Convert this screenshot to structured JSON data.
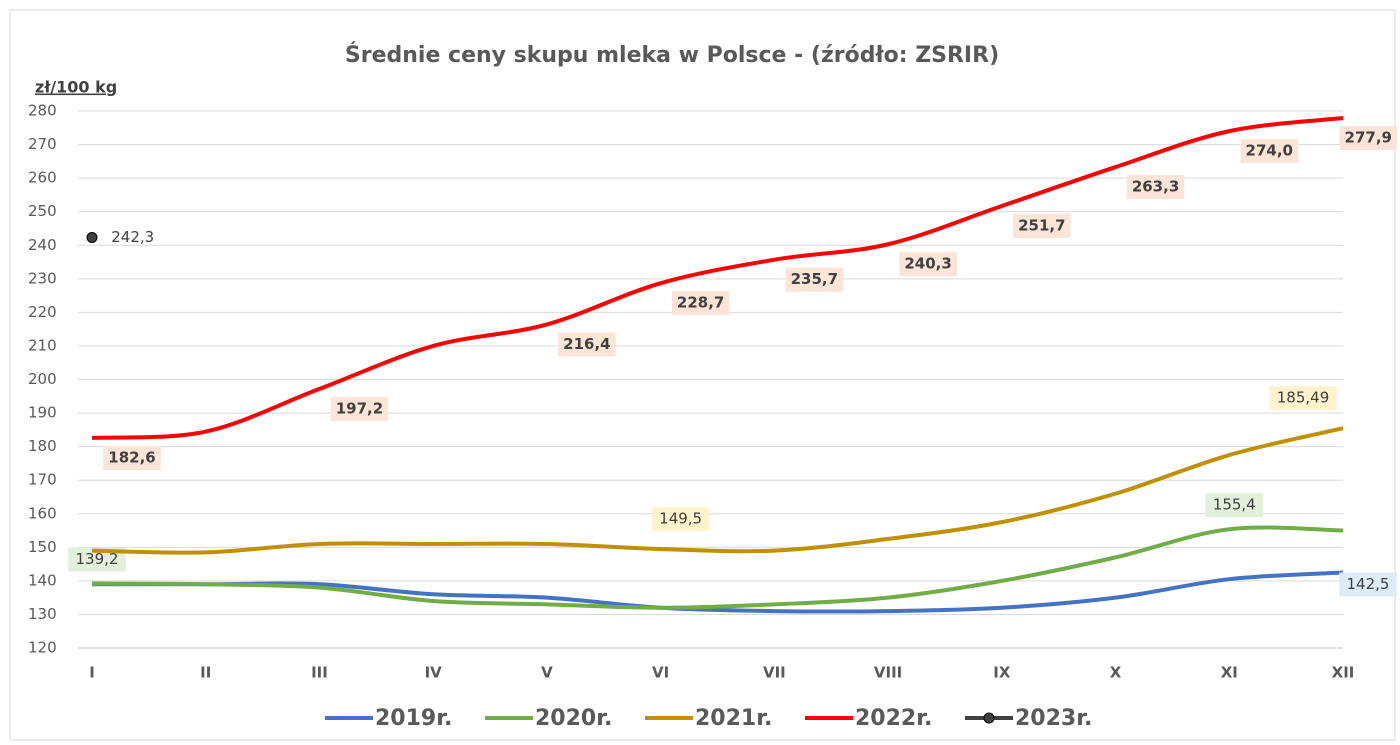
{
  "chart_data": {
    "type": "line",
    "title": "Średnie ceny skupu mleka w Polsce - (źródło: ZSRIR)",
    "y_label": "zł/100 kg",
    "categories": [
      "I",
      "II",
      "III",
      "IV",
      "V",
      "VI",
      "VII",
      "VIII",
      "IX",
      "X",
      "XI",
      "XII"
    ],
    "ylim": [
      120,
      280
    ],
    "yticks": [
      120,
      130,
      140,
      150,
      160,
      170,
      180,
      190,
      200,
      210,
      220,
      230,
      240,
      250,
      260,
      270,
      280
    ],
    "grid": true,
    "legend": "bottom",
    "series": [
      {
        "name": "2019r.",
        "color": "#4472c4",
        "values": [
          139,
          139,
          139,
          136,
          135,
          132,
          131,
          131,
          132,
          135,
          140.5,
          142.5
        ],
        "value_labels": [
          null,
          null,
          null,
          null,
          null,
          null,
          null,
          null,
          null,
          null,
          null,
          "142,5"
        ]
      },
      {
        "name": "2020r.",
        "color": "#70ad47",
        "values": [
          139.2,
          139,
          138,
          134,
          133,
          132,
          133,
          135,
          140,
          147,
          155.4,
          155
        ],
        "value_labels": [
          "139,2",
          null,
          null,
          null,
          null,
          null,
          null,
          null,
          null,
          null,
          "155,4",
          null
        ]
      },
      {
        "name": "2021r.",
        "color": "#bf9000",
        "values": [
          149,
          148.5,
          151,
          151,
          151,
          149.5,
          149,
          152.5,
          157.5,
          166,
          177.5,
          185.49
        ],
        "value_labels": [
          null,
          null,
          null,
          null,
          null,
          "149,5",
          null,
          null,
          null,
          null,
          null,
          "185,49"
        ]
      },
      {
        "name": "2022r.",
        "color": "#ff0000",
        "values": [
          182.6,
          184.5,
          197.2,
          210,
          216.4,
          228.7,
          235.7,
          240.3,
          251.7,
          263.3,
          274.0,
          277.9
        ],
        "value_labels": [
          "182,6",
          null,
          "197,2",
          null,
          "216,4",
          "228,7",
          "235,7",
          "240,3",
          "251,7",
          "263,3",
          "274,0",
          "277,9"
        ]
      },
      {
        "name": "2023r.",
        "color": "#404040",
        "values": [
          242.3,
          null,
          null,
          null,
          null,
          null,
          null,
          null,
          null,
          null,
          null,
          null
        ],
        "value_labels": [
          "242,3",
          null,
          null,
          null,
          null,
          null,
          null,
          null,
          null,
          null,
          null,
          null
        ]
      }
    ]
  }
}
